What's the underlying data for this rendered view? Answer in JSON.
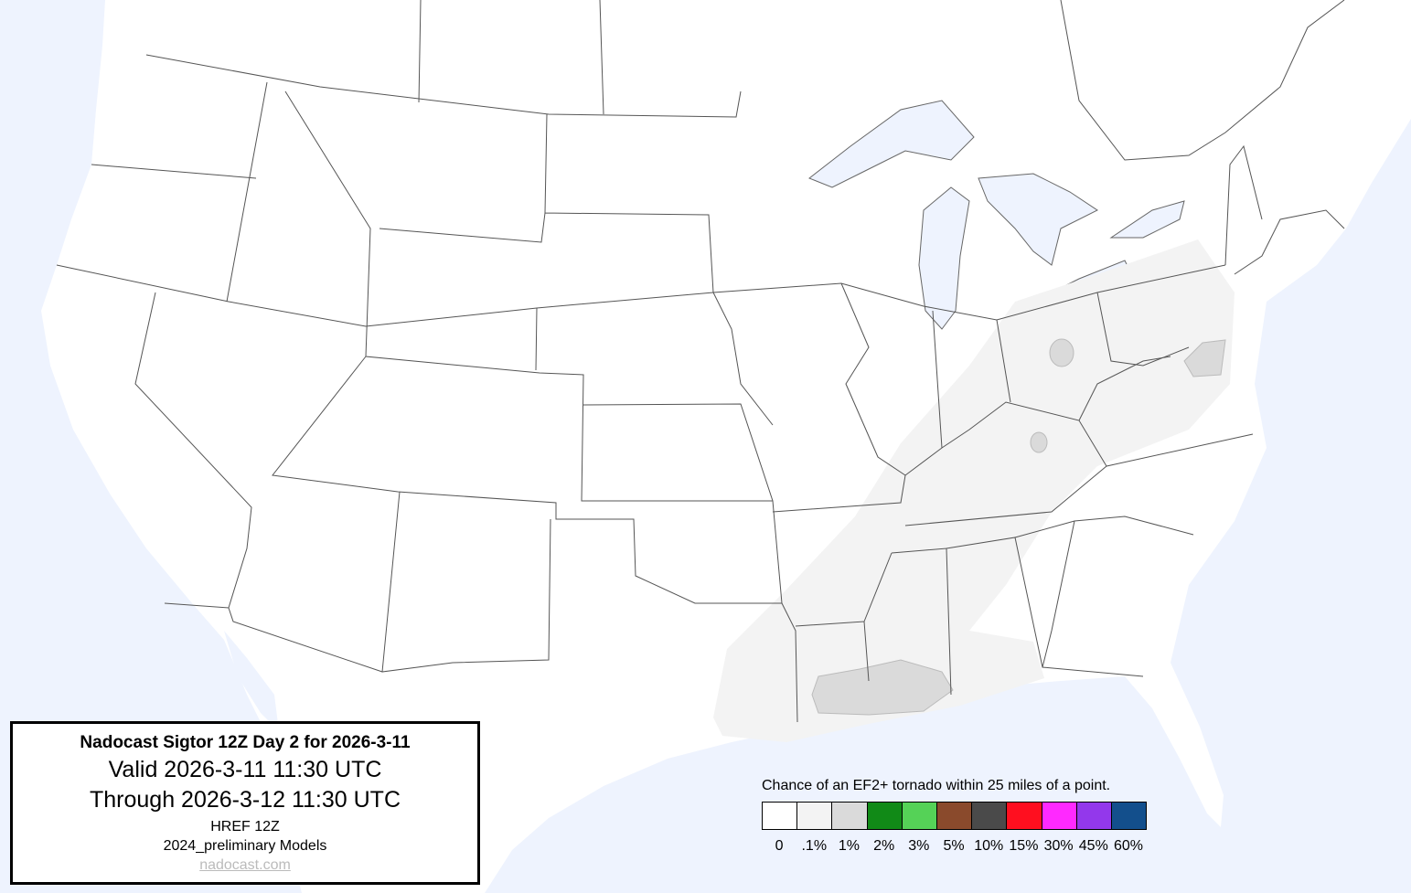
{
  "info": {
    "title": "Nadocast Sigtor 12Z Day 2 for 2026-3-11",
    "valid": "Valid 2026-3-11 11:30 UTC",
    "through": "Through 2026-3-12 11:30 UTC",
    "model": "HREF 12Z",
    "models": "2024_preliminary Models",
    "link": "nadocast.com"
  },
  "legend": {
    "caption": "Chance of an EF2+ tornado within 25 miles of a point.",
    "bins": [
      {
        "label": "0",
        "color": "#ffffff"
      },
      {
        "label": ".1%",
        "color": "#f3f3f3"
      },
      {
        "label": "1%",
        "color": "#dadada"
      },
      {
        "label": "2%",
        "color": "#118a17"
      },
      {
        "label": "3%",
        "color": "#55d257"
      },
      {
        "label": "5%",
        "color": "#8a4a2c"
      },
      {
        "label": "10%",
        "color": "#4a4a4a"
      },
      {
        "label": "15%",
        "color": "#ff0f1f"
      },
      {
        "label": "30%",
        "color": "#ff29ff"
      },
      {
        "label": "45%",
        "color": "#9338eb"
      },
      {
        "label": "60%",
        "color": "#134f8c"
      }
    ]
  },
  "colors": {
    "water": "#eef3fe",
    "land": "#ffffff",
    "border": "#555555"
  }
}
